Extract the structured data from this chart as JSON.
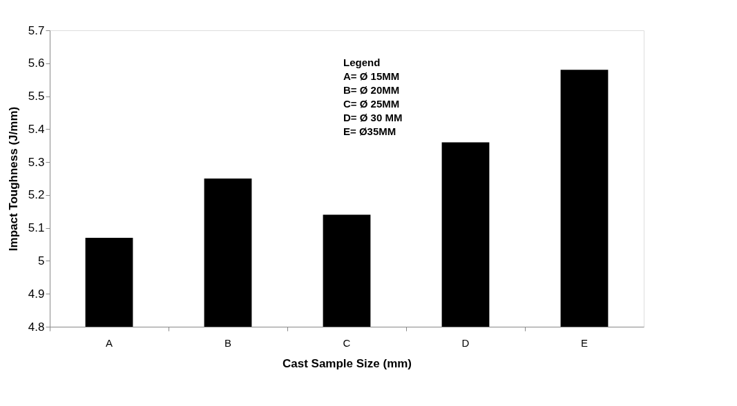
{
  "chart_data": {
    "type": "bar",
    "categories": [
      "A",
      "B",
      "C",
      "D",
      "E"
    ],
    "values": [
      5.07,
      5.25,
      5.14,
      5.36,
      5.58
    ],
    "color": "#000000",
    "xlabel": "Cast Sample Size (mm)",
    "ylabel": "Impact Toughness (J/mm)",
    "ylim": [
      4.8,
      5.7
    ],
    "yticks": [
      4.8,
      4.9,
      {
        "value": 5,
        "label": "5"
      },
      5.1,
      5.2,
      5.3,
      5.4,
      5.5,
      5.6,
      5.7
    ],
    "grid": false,
    "annotations": [
      "Legend",
      "A= Ø 15MM",
      "B= Ø 20MM",
      "C= Ø 25MM",
      "D= Ø 30 MM",
      "E= Ø35MM"
    ]
  }
}
